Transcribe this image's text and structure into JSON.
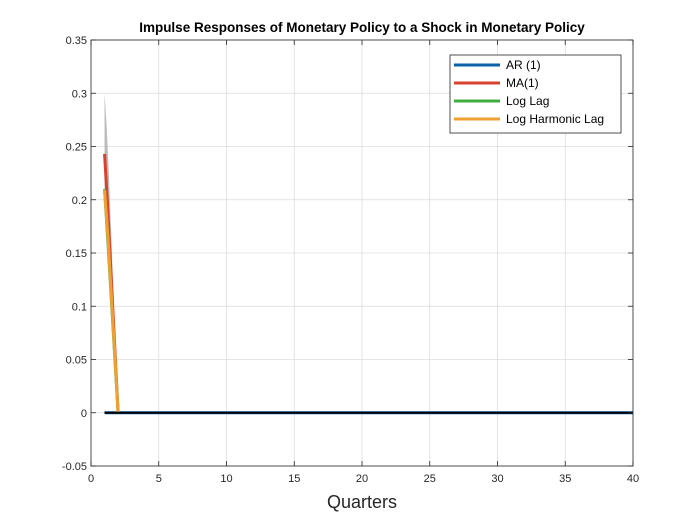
{
  "chart_data": {
    "type": "line",
    "title": "Impulse Responses of Monetary Policy to a Shock in Monetary Policy",
    "xlabel": "Quarters",
    "ylabel": "",
    "xlim": [
      0,
      40
    ],
    "ylim": [
      -0.05,
      0.35
    ],
    "xticks": [
      0,
      5,
      10,
      15,
      20,
      25,
      30,
      35,
      40
    ],
    "yticks": [
      -0.05,
      0,
      0.05,
      0.1,
      0.15,
      0.2,
      0.25,
      0.3,
      0.35
    ],
    "grid": true,
    "legend_position": "top-right",
    "band": {
      "color": "#b0b0b0",
      "x": [
        1,
        1.15,
        1.3,
        2
      ],
      "upper": [
        0.3,
        0.27,
        0.23,
        0.0
      ],
      "lower": [
        0.2,
        0.19,
        0.16,
        0.0
      ]
    },
    "series": [
      {
        "name": "AR (1)",
        "color": "#0b62a8",
        "x": [
          1,
          40
        ],
        "y": [
          0,
          0
        ]
      },
      {
        "name": "MA(1)",
        "color": "#d9412f",
        "x": [
          1,
          1.2,
          2
        ],
        "y": [
          0.243,
          0.2,
          0.0
        ]
      },
      {
        "name": "Log Lag",
        "color": "#3fae3f",
        "x": [
          1,
          1.25,
          2
        ],
        "y": [
          0.21,
          0.16,
          0.0
        ]
      },
      {
        "name": "Log Harmonic Lag",
        "color": "#f0a033",
        "x": [
          1,
          1.25,
          2
        ],
        "y": [
          0.209,
          0.165,
          0.0
        ]
      }
    ],
    "zero_line": {
      "color": "#000000",
      "x": [
        1,
        40
      ],
      "y": [
        0,
        0
      ]
    }
  }
}
